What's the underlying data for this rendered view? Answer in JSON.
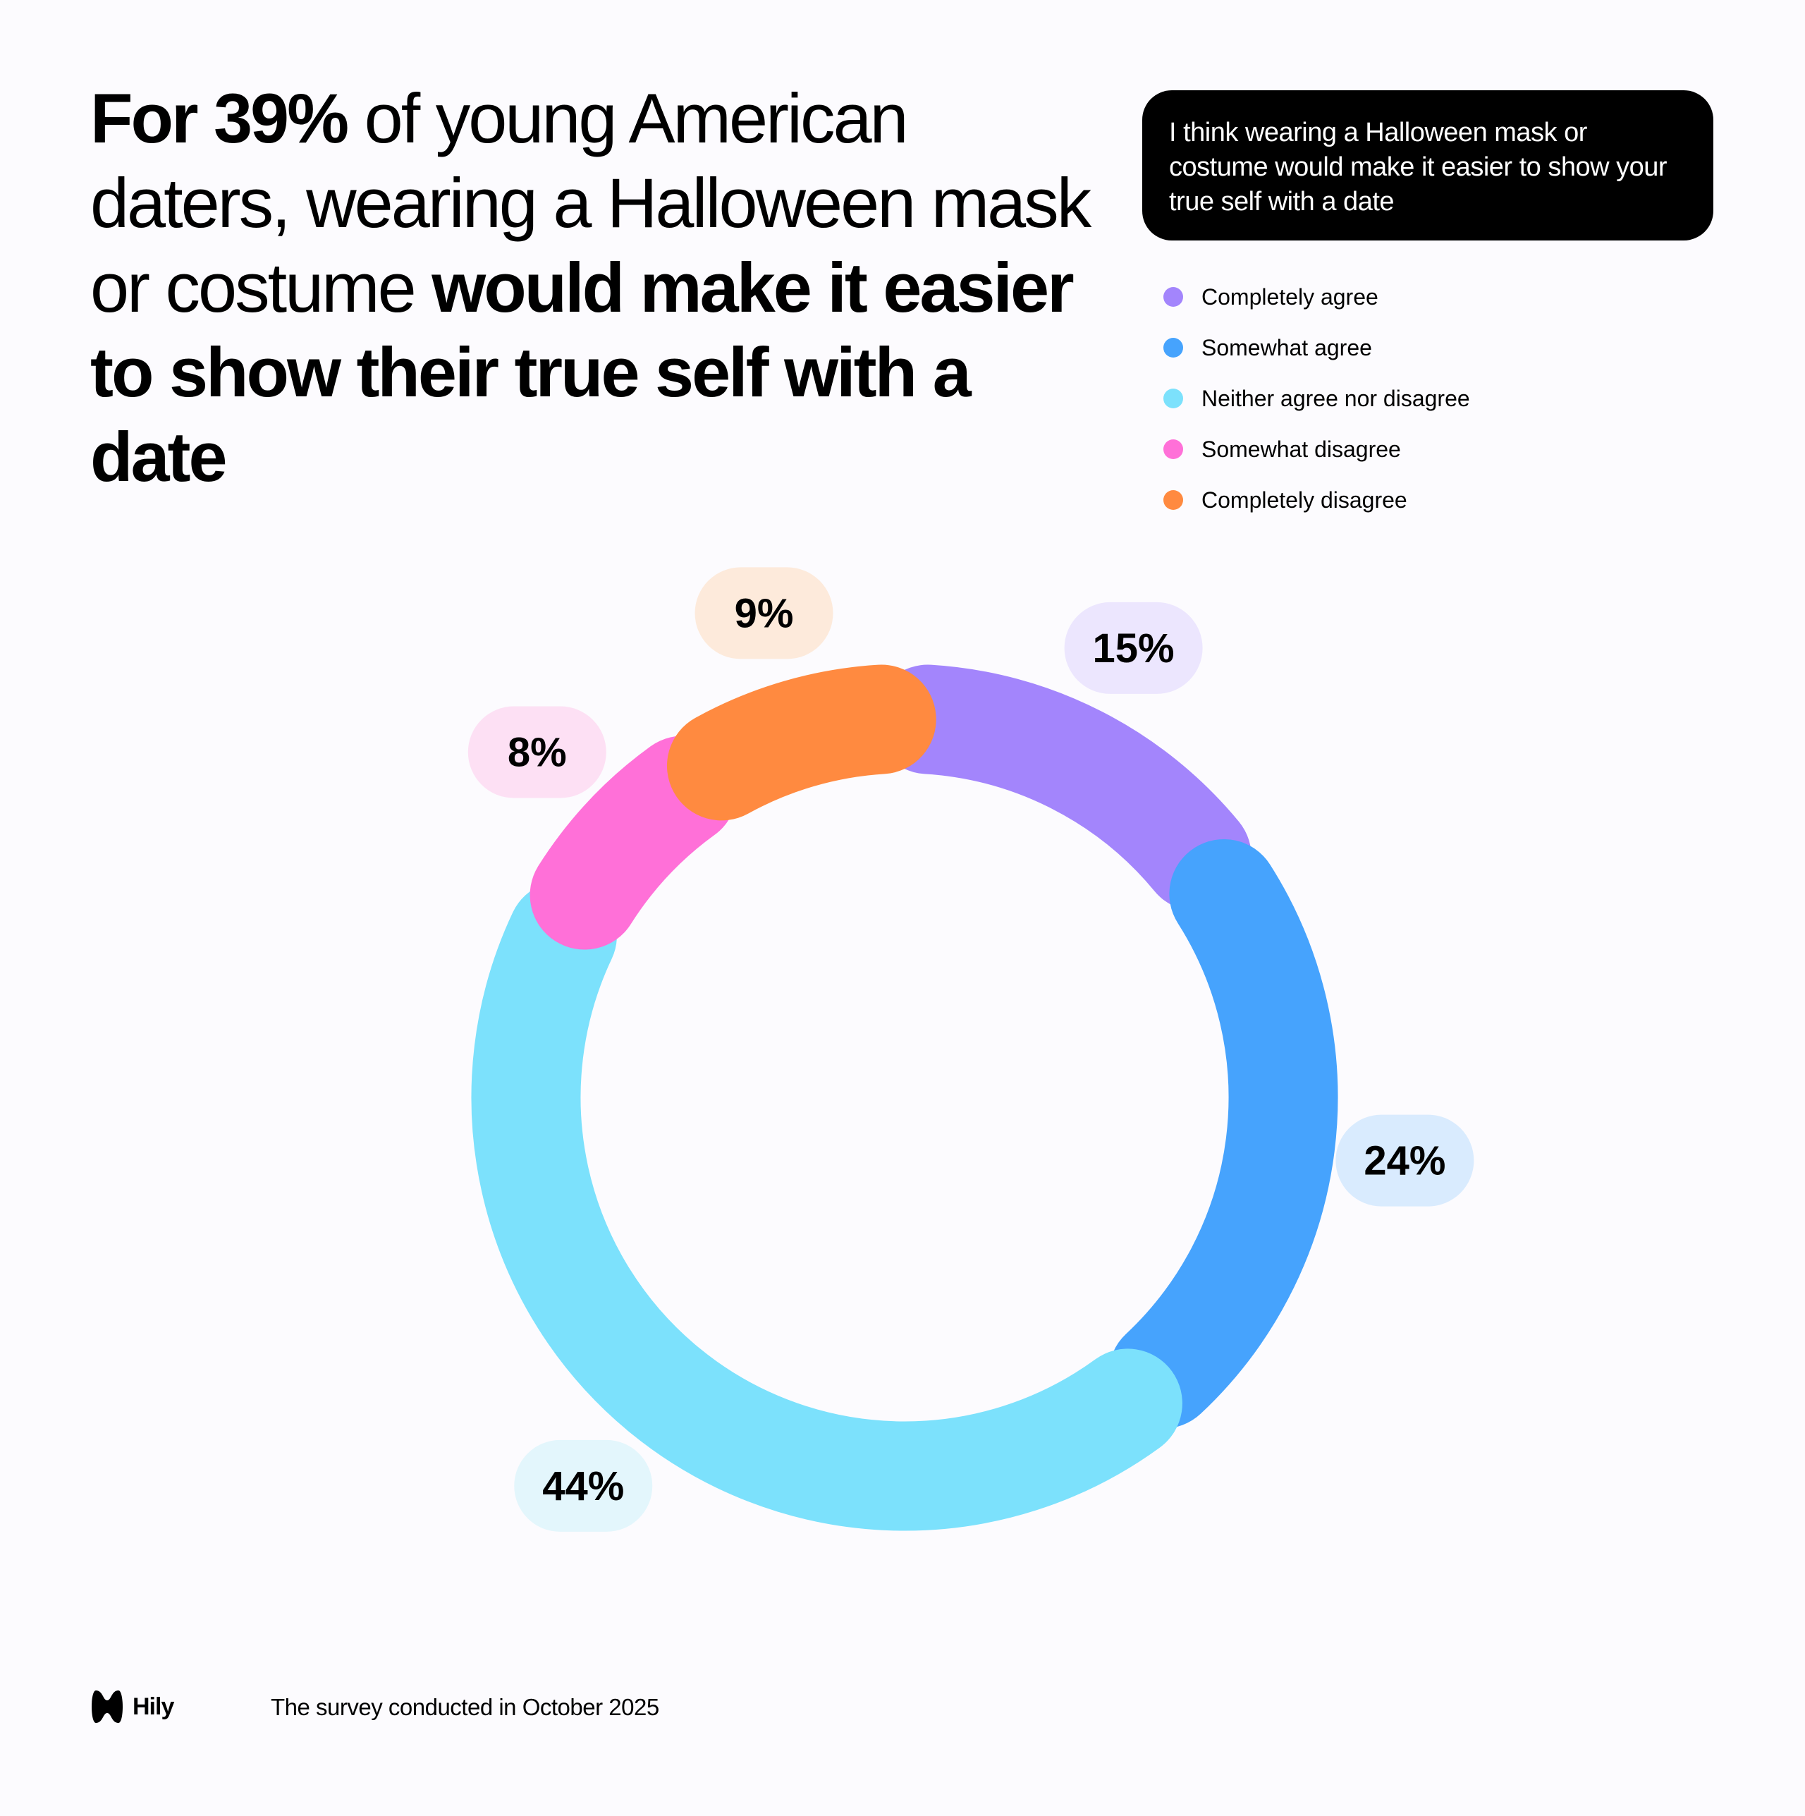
{
  "title": {
    "parts": [
      {
        "text": "For 39%",
        "bold": true
      },
      {
        "text": " of young American daters, wearing a Halloween mask or costume ",
        "bold": false
      },
      {
        "text": "would make it easier to show their true self with a date",
        "bold": true
      }
    ]
  },
  "question": "I think wearing a Halloween mask or costume would make it easier to show your true self with a date",
  "chart_data": {
    "type": "pie",
    "variant": "donut",
    "legend_position": "top-right",
    "start": "top, clockwise",
    "categories": [
      "Completely agree",
      "Somewhat agree",
      "Neither agree nor disagree",
      "Somewhat disagree",
      "Completely disagree"
    ],
    "values": [
      15,
      24,
      44,
      8,
      9
    ],
    "labels": [
      "15%",
      "24%",
      "44%",
      "8%",
      "9%"
    ],
    "colors": [
      "#A385FC",
      "#46A3FD",
      "#7CE1FC",
      "#FF70D8",
      "#FF8A40"
    ],
    "label_bg_colors": [
      "#ECE6FE",
      "#D9EBFE",
      "#E3F6FC",
      "#FDE0F4",
      "#FDEADB"
    ]
  },
  "footer": {
    "brand": "Hily",
    "note": "The survey conducted in October 2025"
  }
}
